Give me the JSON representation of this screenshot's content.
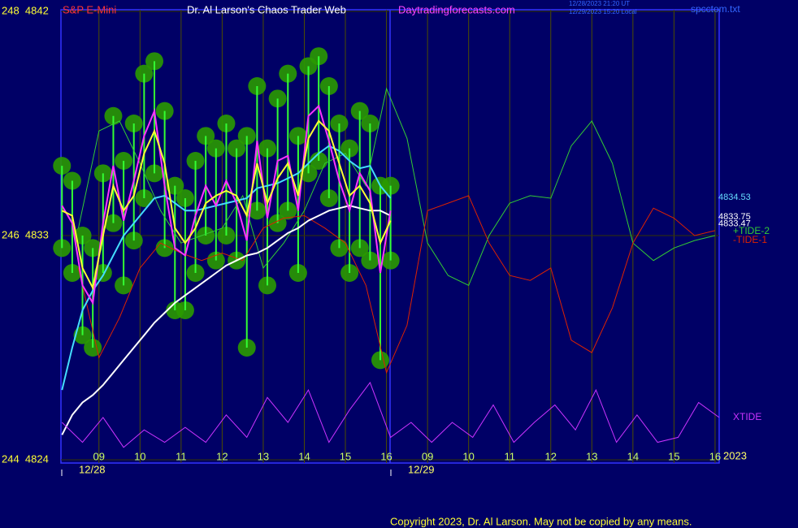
{
  "chart_data": {
    "type": "line",
    "header": {
      "symbol": "S&P E-Mini",
      "title": "Dr. Al Larson's Chaos Trader Web",
      "site": "Daytradingforecasts.com",
      "stamp_1": "12/28/2023 21:20 UT",
      "stamp_2": "12/29/2023 15:20 Local",
      "file": "spcctom.txt"
    },
    "copyright": "Copyright 2023, Dr. Al Larson. May not be copied by any means.",
    "xlim": [
      8.075,
      24.1
    ],
    "xticks": [
      {
        "value": 9,
        "label": "09"
      },
      10,
      11,
      12,
      13,
      14,
      15,
      16,
      {
        "value": 17,
        "label": "09"
      },
      {
        "value": 18,
        "label": "10"
      },
      {
        "value": 19,
        "label": "11"
      },
      {
        "value": 20,
        "label": "12"
      },
      {
        "value": 21,
        "label": "13"
      },
      {
        "value": 22,
        "label": "14"
      },
      {
        "value": 23,
        "label": "15"
      },
      {
        "value": 24,
        "label": "16"
      }
    ],
    "date_labels": [
      "12/28",
      "12/29"
    ],
    "year": "2023",
    "ylim": [
      4824,
      4842
    ],
    "yticks": [
      {
        "value": 4824,
        "label": "244  4824"
      },
      {
        "value": 4833,
        "label": "246  4833"
      },
      {
        "value": 4842,
        "label": "248  4842"
      }
    ],
    "last_values": [
      {
        "value": 4834.53,
        "color": "#66ddff"
      },
      {
        "value": 4833.75,
        "color": "#ffffff"
      },
      {
        "value": 4833.47,
        "color": "#ffffff"
      }
    ],
    "ranges": {
      "color": "#33ff33",
      "x": [
        8.1,
        8.35,
        8.6,
        8.85,
        9.1,
        9.35,
        9.6,
        9.85,
        10.1,
        10.35,
        10.6,
        10.85,
        11.1,
        11.35,
        11.6,
        11.85,
        12.1,
        12.35,
        12.6,
        12.85,
        13.1,
        13.35,
        13.6,
        13.85,
        14.1,
        14.35,
        14.6,
        14.85,
        15.1,
        15.35,
        15.6,
        15.85,
        16.1
      ],
      "high": [
        4835.8,
        4835.2,
        4833.0,
        4832.5,
        4835.5,
        4837.8,
        4836.0,
        4837.5,
        4839.5,
        4840.0,
        4838.0,
        4835.0,
        4834.5,
        4836.0,
        4837.0,
        4836.5,
        4837.5,
        4836.5,
        4837.0,
        4839.0,
        4836.5,
        4838.5,
        4839.5,
        4837.0,
        4839.8,
        4840.2,
        4839.0,
        4837.5,
        4836.5,
        4838.0,
        4837.5,
        4835.0,
        4835.0
      ],
      "low": [
        4832.5,
        4831.5,
        4829.0,
        4828.5,
        4831.5,
        4833.5,
        4831.0,
        4832.8,
        4834.5,
        4835.5,
        4832.5,
        4830.0,
        4830.0,
        4831.5,
        4833.0,
        4832.0,
        4833.0,
        4832.0,
        4828.5,
        4834.0,
        4831.0,
        4833.5,
        4834.0,
        4831.5,
        4835.5,
        4836.0,
        4834.5,
        4832.5,
        4831.5,
        4832.5,
        4832.0,
        4828.0,
        4832.0
      ]
    },
    "series": [
      {
        "name": "+TIDE-2",
        "color": "#33cc33",
        "x": [
          8.5,
          9,
          9.5,
          10,
          10.5,
          11,
          11.5,
          12,
          12.5,
          13,
          13.5,
          14,
          14.5,
          15,
          15.5,
          16,
          16.5,
          17,
          17.5,
          18,
          18.5,
          19,
          19.5,
          20,
          20.5,
          21,
          21.5,
          22,
          22.5,
          23,
          23.5,
          24
        ],
        "values": [
          4833.3,
          4837.2,
          4837.6,
          4835.9,
          4834.0,
          4832.7,
          4833.0,
          4833.3,
          4834.6,
          4831.7,
          4832.7,
          4834.0,
          4835.9,
          4836.3,
          4835.0,
          4838.9,
          4836.9,
          4832.7,
          4831.4,
          4831.0,
          4833.0,
          4834.3,
          4834.6,
          4834.5,
          4836.6,
          4837.6,
          4835.9,
          4832.7,
          4832.0,
          4832.5,
          4832.8,
          4833.0
        ]
      },
      {
        "name": "-TIDE-1",
        "color": "#dd2200",
        "x": [
          8.5,
          9,
          9.5,
          10,
          10.5,
          11,
          11.5,
          12,
          12.5,
          13,
          13.5,
          14,
          14.5,
          15,
          15.5,
          16,
          16.5,
          17,
          17.5,
          18,
          18.5,
          19,
          19.5,
          20,
          20.5,
          21,
          21.5,
          22,
          22.5,
          23,
          23.5,
          24
        ],
        "values": [
          4831.7,
          4828.1,
          4829.7,
          4831.7,
          4832.7,
          4832.3,
          4832.0,
          4832.3,
          4832.0,
          4833.3,
          4833.7,
          4833.8,
          4833.3,
          4832.7,
          4831.0,
          4827.5,
          4829.4,
          4834.0,
          4834.3,
          4834.6,
          4832.7,
          4831.4,
          4831.2,
          4831.7,
          4828.8,
          4828.3,
          4830.1,
          4832.7,
          4834.1,
          4833.7,
          4833.0,
          4833.2
        ]
      },
      {
        "color": "#ffffff",
        "width": 2,
        "x": [
          8.1,
          8.35,
          8.6,
          8.85,
          9.1,
          9.35,
          9.6,
          9.85,
          10.1,
          10.35,
          10.6,
          10.85,
          11.1,
          11.35,
          11.6,
          11.85,
          12.1,
          12.35,
          12.6,
          12.85,
          13.1,
          13.35,
          13.6,
          13.85,
          14.1,
          14.35,
          14.6,
          14.85,
          15.1,
          15.35,
          15.6,
          15.85,
          16.1
        ],
        "values": [
          4825.0,
          4825.8,
          4826.3,
          4826.6,
          4827.0,
          4827.5,
          4828.0,
          4828.5,
          4829.0,
          4829.5,
          4829.9,
          4830.3,
          4830.6,
          4830.9,
          4831.2,
          4831.5,
          4831.8,
          4832.0,
          4832.2,
          4832.3,
          4832.5,
          4832.8,
          4833.1,
          4833.3,
          4833.6,
          4833.8,
          4834.0,
          4834.1,
          4834.2,
          4834.1,
          4834.0,
          4834.0,
          4833.8
        ]
      },
      {
        "color": "#44ddff",
        "width": 2,
        "x": [
          8.1,
          8.35,
          8.6,
          8.85,
          9.1,
          9.35,
          9.6,
          9.85,
          10.1,
          10.35,
          10.6,
          10.85,
          11.1,
          11.35,
          11.6,
          11.85,
          12.1,
          12.35,
          12.6,
          12.85,
          13.1,
          13.35,
          13.6,
          13.85,
          14.1,
          14.35,
          14.6,
          14.85,
          15.1,
          15.35,
          15.6,
          15.85,
          16.1
        ],
        "values": [
          4826.8,
          4828.5,
          4830.0,
          4830.8,
          4831.4,
          4832.2,
          4833.0,
          4833.5,
          4834.0,
          4834.5,
          4834.6,
          4834.3,
          4834.0,
          4834.0,
          4834.1,
          4834.2,
          4834.3,
          4834.4,
          4834.5,
          4834.9,
          4835.0,
          4835.1,
          4835.3,
          4835.5,
          4835.9,
          4836.3,
          4836.6,
          4836.4,
          4836.0,
          4835.7,
          4835.8,
          4835.0,
          4834.5
        ]
      },
      {
        "color": "#ff33ff",
        "width": 2,
        "x": [
          8.1,
          8.35,
          8.6,
          8.85,
          9.1,
          9.35,
          9.6,
          9.85,
          10.1,
          10.35,
          10.6,
          10.85,
          11.1,
          11.35,
          11.6,
          11.85,
          12.1,
          12.35,
          12.6,
          12.85,
          13.1,
          13.35,
          13.6,
          13.85,
          14.1,
          14.35,
          14.6,
          14.85,
          15.1,
          15.35,
          15.6,
          15.85,
          16.1
        ],
        "values": [
          4834.2,
          4833.5,
          4831.0,
          4830.3,
          4833.5,
          4835.8,
          4833.6,
          4835.2,
          4837.0,
          4838.0,
          4835.0,
          4832.5,
          4832.2,
          4833.8,
          4835.0,
          4834.2,
          4835.2,
          4834.3,
          4832.8,
          4836.8,
          4833.7,
          4836.0,
          4836.2,
          4834.0,
          4837.8,
          4838.2,
          4836.8,
          4835.2,
          4834.0,
          4835.5,
          4834.8,
          4831.5,
          4834.0
        ]
      },
      {
        "color": "#ffff33",
        "width": 2,
        "x": [
          8.1,
          8.35,
          8.6,
          8.85,
          9.1,
          9.35,
          9.6,
          9.85,
          10.1,
          10.35,
          10.6,
          10.85,
          11.1,
          11.35,
          11.6,
          11.85,
          12.1,
          12.35,
          12.6,
          12.85,
          13.1,
          13.35,
          13.6,
          13.85,
          14.1,
          14.35,
          14.6,
          14.85,
          15.1,
          15.35,
          15.6,
          15.85,
          16.1
        ],
        "values": [
          4834.0,
          4833.8,
          4831.7,
          4830.9,
          4833.0,
          4835.0,
          4834.0,
          4834.6,
          4836.3,
          4837.2,
          4835.9,
          4833.3,
          4832.7,
          4833.3,
          4834.3,
          4834.6,
          4834.8,
          4834.6,
          4833.8,
          4835.9,
          4834.3,
          4835.3,
          4835.9,
          4834.6,
          4836.9,
          4837.6,
          4837.2,
          4835.9,
          4834.6,
          4835.0,
          4834.3,
          4832.7,
          4833.6
        ]
      },
      {
        "name": "XTIDE",
        "color": "#cc33ff",
        "x": [
          8.1,
          8.6,
          9.1,
          9.6,
          10.1,
          10.6,
          11.1,
          11.6,
          12.1,
          12.6,
          13.1,
          13.6,
          14.1,
          14.6,
          15.1,
          15.6,
          16.1,
          16.6,
          17.1,
          17.6,
          18.1,
          18.6,
          19.1,
          19.6,
          20.1,
          20.6,
          21.1,
          21.6,
          22.1,
          22.6,
          23.1,
          23.6,
          24.1
        ],
        "values": [
          4825.5,
          4824.7,
          4825.7,
          4824.5,
          4825.2,
          4824.7,
          4825.3,
          4824.7,
          4825.8,
          4824.9,
          4826.5,
          4825.5,
          4826.8,
          4824.7,
          4826.0,
          4827.1,
          4824.9,
          4825.5,
          4824.7,
          4825.5,
          4824.9,
          4826.2,
          4824.7,
          4825.5,
          4826.2,
          4825.2,
          4826.8,
          4824.7,
          4825.8,
          4824.7,
          4824.9,
          4826.3,
          4825.7
        ]
      }
    ]
  }
}
